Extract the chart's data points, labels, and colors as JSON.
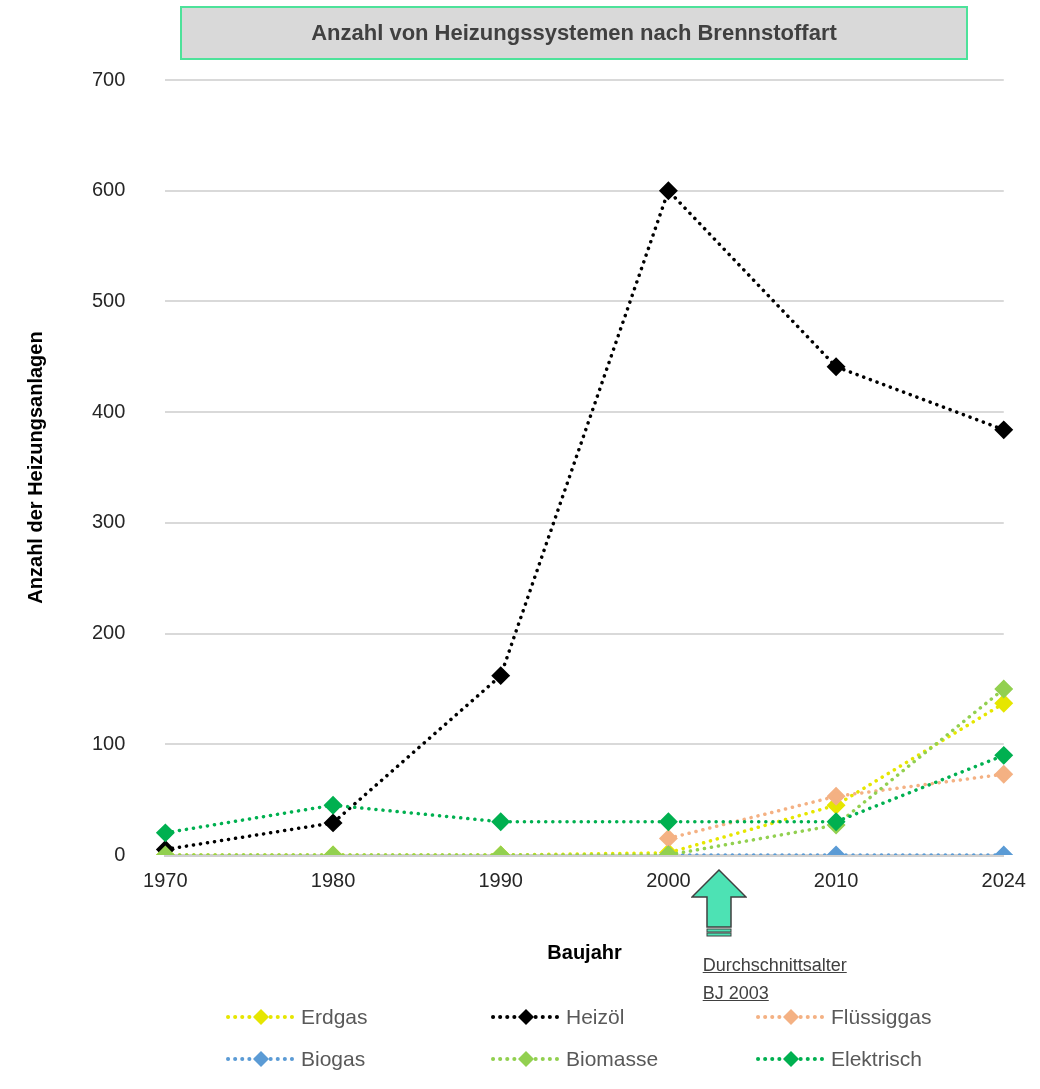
{
  "chart_data": {
    "type": "line",
    "title": "Anzahl von Heizungssystemen nach Brennstoffart",
    "xlabel": "Baujahr",
    "ylabel": "Anzahl der Heizungsanlagen",
    "categories": [
      "1970",
      "1980",
      "1990",
      "2000",
      "2010",
      "2024"
    ],
    "series": [
      {
        "name": "Erdgas",
        "color": "#e6e600",
        "values": [
          0,
          0,
          0,
          2,
          45,
          137
        ]
      },
      {
        "name": "Heizöl",
        "color": "#000000",
        "values": [
          5,
          29,
          162,
          600,
          441,
          384
        ]
      },
      {
        "name": "Flüssiggas",
        "color": "#f4b183",
        "values": [
          null,
          null,
          null,
          15,
          53,
          73
        ]
      },
      {
        "name": "Biogas",
        "color": "#5b9bd5",
        "values": [
          null,
          null,
          null,
          0,
          0,
          0
        ]
      },
      {
        "name": "Biomasse",
        "color": "#92d050",
        "values": [
          0,
          0,
          0,
          0,
          27,
          150
        ]
      },
      {
        "name": "Elektrisch",
        "color": "#00b050",
        "values": [
          20,
          45,
          30,
          30,
          30,
          90
        ]
      }
    ],
    "ylim": [
      0,
      700
    ],
    "yticks": [
      0,
      100,
      200,
      300,
      400,
      500,
      600,
      700
    ],
    "grid": "y",
    "legend": "bottom",
    "marker": "diamond",
    "line_style": "dotted",
    "annotations": [
      "Durchschnittsalter\nBJ 2003"
    ]
  }
}
